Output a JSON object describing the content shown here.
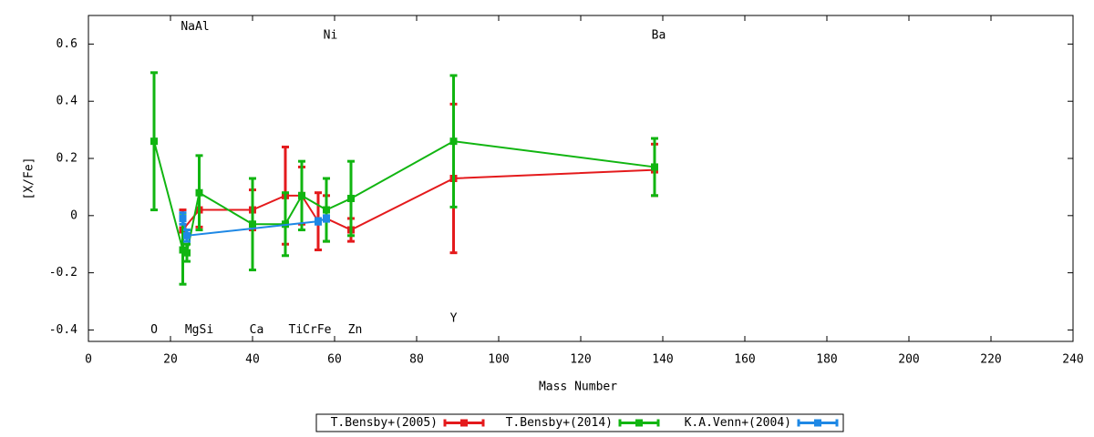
{
  "chart_data": {
    "type": "errorbar",
    "x_label": "Mass Number",
    "y_label": "[X/Fe]",
    "xlim": [
      0,
      240
    ],
    "xticks": [
      0,
      20,
      40,
      60,
      80,
      100,
      120,
      140,
      160,
      180,
      200,
      220,
      240
    ],
    "ylim": [
      -0.44,
      0.7
    ],
    "yticks": [
      -0.4,
      -0.2,
      0,
      0.2,
      0.4,
      0.6
    ],
    "grid": false,
    "legend": "bottom",
    "series": [
      {
        "name": "T.Bensby+(2005)",
        "color": "#e41a1c",
        "x": [
          23,
          27,
          40,
          48,
          52,
          56,
          58,
          64,
          89,
          138
        ],
        "values": [
          -0.05,
          0.02,
          0.02,
          0.07,
          0.07,
          -0.02,
          -0.01,
          -0.05,
          0.13,
          0.16
        ],
        "errors": [
          0.07,
          0.06,
          0.07,
          0.17,
          0.1,
          0.1,
          0.08,
          0.04,
          0.26,
          0.09
        ]
      },
      {
        "name": "T.Bensby+(2014)",
        "color": "#11b511",
        "x": [
          16,
          23,
          24,
          27,
          40,
          48,
          52,
          58,
          64,
          89,
          138
        ],
        "values": [
          0.26,
          -0.12,
          -0.13,
          0.08,
          -0.03,
          -0.03,
          0.07,
          0.02,
          0.06,
          0.26,
          0.17
        ],
        "errors": [
          0.24,
          0.12,
          0.03,
          0.13,
          0.16,
          0.11,
          0.12,
          0.11,
          0.13,
          0.23,
          0.1
        ]
      },
      {
        "name": "K.A.Venn+(2004)",
        "color": "#1e88e5",
        "x": [
          23,
          24,
          56,
          58
        ],
        "values": [
          -0.01,
          -0.07,
          -0.02,
          -0.01
        ],
        "errors": [
          0.02,
          0.02,
          0.01,
          0.01
        ]
      }
    ],
    "annotations": [
      {
        "text": "NaAl",
        "x": 26,
        "y": 0.66
      },
      {
        "text": "Ni",
        "x": 59,
        "y": 0.63
      },
      {
        "text": "Ba",
        "x": 139,
        "y": 0.63
      },
      {
        "text": "O",
        "x": 16,
        "y": -0.4
      },
      {
        "text": "MgSi",
        "x": 27,
        "y": -0.4
      },
      {
        "text": "Ca",
        "x": 41,
        "y": -0.4
      },
      {
        "text": "TiCrFe",
        "x": 54,
        "y": -0.4
      },
      {
        "text": "Zn",
        "x": 65,
        "y": -0.4
      },
      {
        "text": "Y",
        "x": 89,
        "y": -0.36
      }
    ]
  }
}
